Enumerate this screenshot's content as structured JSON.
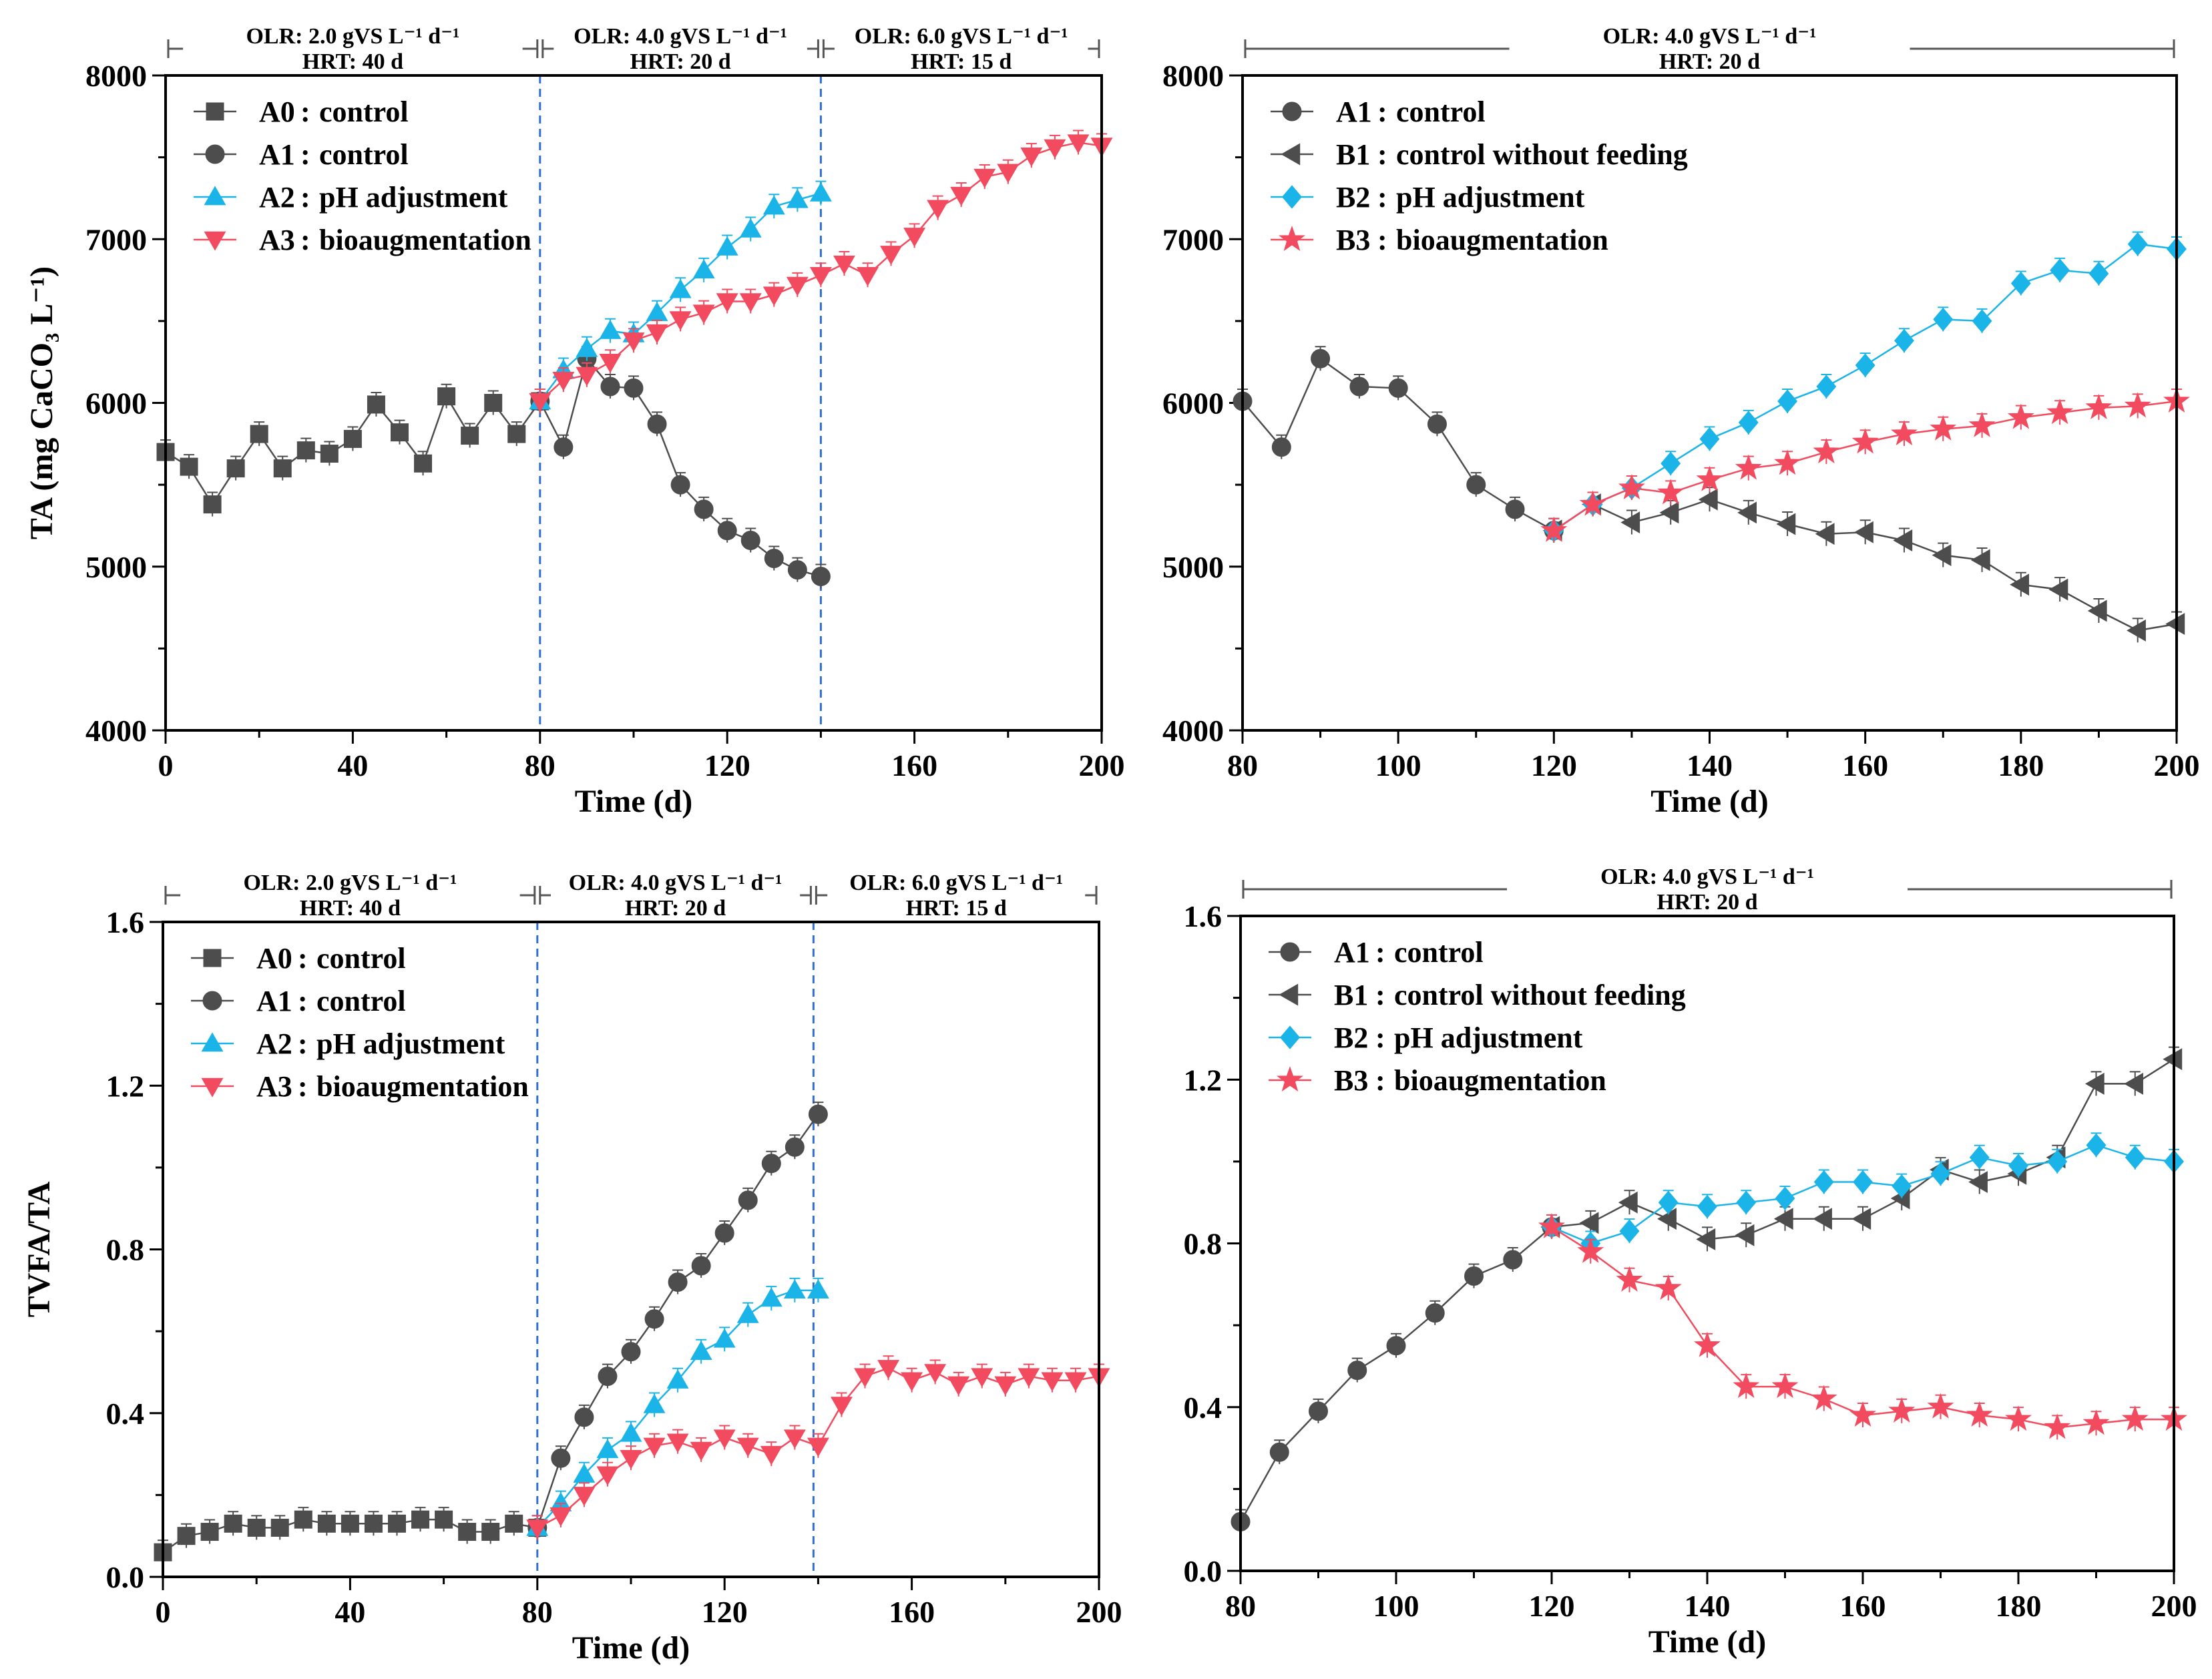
{
  "colors": {
    "gray": "#4d4d4d",
    "cyan": "#1ab4e8",
    "red": "#f24a5e",
    "divider": "#2f6fd6",
    "bracket": "#555555"
  },
  "chart_data": [
    {
      "type": "line",
      "panel": "top-left",
      "xlabel": "Time (d)",
      "ylabel": "TA (mg CaCO₃ L⁻¹)",
      "xlim": [
        0,
        200
      ],
      "ylim": [
        4000,
        8000
      ],
      "xticks": [
        0,
        40,
        80,
        120,
        160,
        200
      ],
      "yticks": [
        4000,
        5000,
        6000,
        7000,
        8000
      ],
      "xtick_labels": [
        "0",
        "40",
        "80",
        "120",
        "160",
        "200"
      ],
      "ytick_labels": [
        "4000",
        "5000",
        "6000",
        "7000",
        "8000"
      ],
      "xminor": 20,
      "yminor": 500,
      "dividers": [
        80,
        140
      ],
      "phases": [
        {
          "from": 0,
          "to": 80,
          "olr": "OLR:  2.0 gVS L⁻¹ d⁻¹",
          "hrt": "HRT: 40 d"
        },
        {
          "from": 80,
          "to": 140,
          "olr": "OLR:  4.0 gVS L⁻¹ d⁻¹",
          "hrt": "HRT: 20 d"
        },
        {
          "from": 140,
          "to": 200,
          "olr": "OLR:  6.0 gVS L⁻¹ d⁻¹",
          "hrt": "HRT: 15 d"
        }
      ],
      "series": [
        {
          "id": "A0",
          "name": "control",
          "marker": "square",
          "color": "#4d4d4d",
          "x": [
            0,
            5,
            10,
            15,
            20,
            25,
            30,
            35,
            40,
            45,
            50,
            55,
            60,
            65,
            70,
            75,
            80
          ],
          "y": [
            5700,
            5610,
            5380,
            5600,
            5810,
            5600,
            5710,
            5690,
            5780,
            5990,
            5820,
            5630,
            6040,
            5800,
            6000,
            5810,
            6010
          ]
        },
        {
          "id": "A1",
          "name": "control",
          "marker": "circle",
          "color": "#4d4d4d",
          "x": [
            80,
            85,
            90,
            95,
            100,
            105,
            110,
            115,
            120,
            125,
            130,
            135,
            140
          ],
          "y": [
            6010,
            5730,
            6270,
            6100,
            6090,
            5870,
            5500,
            5350,
            5220,
            5160,
            5050,
            4980,
            4940
          ]
        },
        {
          "id": "A2",
          "name": "pH adjustment",
          "marker": "triangle-up",
          "color": "#1ab4e8",
          "x": [
            80,
            85,
            90,
            95,
            100,
            105,
            110,
            115,
            120,
            125,
            130,
            135,
            140
          ],
          "y": [
            6010,
            6200,
            6330,
            6440,
            6420,
            6550,
            6690,
            6810,
            6950,
            7060,
            7200,
            7240,
            7280
          ]
        },
        {
          "id": "A3",
          "name": "bioaugmentation",
          "marker": "triangle-down",
          "color": "#f24a5e",
          "x": [
            80,
            85,
            90,
            95,
            100,
            105,
            110,
            115,
            120,
            125,
            130,
            135,
            140,
            145,
            150,
            155,
            160,
            165,
            170,
            175,
            180,
            185,
            190,
            195,
            200
          ],
          "y": [
            6010,
            6140,
            6170,
            6250,
            6380,
            6430,
            6510,
            6550,
            6620,
            6620,
            6660,
            6720,
            6780,
            6850,
            6780,
            6910,
            7020,
            7190,
            7270,
            7380,
            7410,
            7510,
            7560,
            7590,
            7570
          ]
        }
      ]
    },
    {
      "type": "line",
      "panel": "top-right",
      "xlabel": "Time (d)",
      "ylabel": "",
      "xlim": [
        80,
        200
      ],
      "ylim": [
        4000,
        8000
      ],
      "xticks": [
        80,
        100,
        120,
        140,
        160,
        180,
        200
      ],
      "yticks": [
        4000,
        5000,
        6000,
        7000,
        8000
      ],
      "xtick_labels": [
        "80",
        "100",
        "120",
        "140",
        "160",
        "180",
        "200"
      ],
      "ytick_labels": [
        "4000",
        "5000",
        "6000",
        "7000",
        "8000"
      ],
      "xminor": 10,
      "yminor": 500,
      "dividers": [],
      "phases": [
        {
          "from": 80,
          "to": 200,
          "olr": "OLR:  4.0 gVS L⁻¹ d⁻¹",
          "hrt": "HRT: 20 d"
        }
      ],
      "series": [
        {
          "id": "A1",
          "name": "control",
          "marker": "circle",
          "color": "#4d4d4d",
          "x": [
            80,
            85,
            90,
            95,
            100,
            105,
            110,
            115,
            120
          ],
          "y": [
            6010,
            5730,
            6270,
            6100,
            6090,
            5870,
            5500,
            5350,
            5220
          ]
        },
        {
          "id": "B1",
          "name": "control without feeding",
          "marker": "triangle-left",
          "color": "#4d4d4d",
          "x": [
            120,
            125,
            130,
            135,
            140,
            145,
            150,
            155,
            160,
            165,
            170,
            175,
            180,
            185,
            190,
            195,
            200
          ],
          "y": [
            5220,
            5380,
            5270,
            5330,
            5410,
            5330,
            5260,
            5200,
            5210,
            5160,
            5070,
            5040,
            4890,
            4860,
            4730,
            4610,
            4650
          ]
        },
        {
          "id": "B2",
          "name": "pH adjustment",
          "marker": "diamond",
          "color": "#1ab4e8",
          "x": [
            120,
            125,
            130,
            135,
            140,
            145,
            150,
            155,
            160,
            165,
            170,
            175,
            180,
            185,
            190,
            195,
            200
          ],
          "y": [
            5220,
            5380,
            5480,
            5630,
            5780,
            5880,
            6010,
            6100,
            6230,
            6380,
            6510,
            6500,
            6730,
            6810,
            6790,
            6970,
            6940
          ]
        },
        {
          "id": "B3",
          "name": "bioaugmentation",
          "marker": "star",
          "color": "#f24a5e",
          "x": [
            120,
            125,
            130,
            135,
            140,
            145,
            150,
            155,
            160,
            165,
            170,
            175,
            180,
            185,
            190,
            195,
            200
          ],
          "y": [
            5220,
            5380,
            5480,
            5450,
            5530,
            5600,
            5630,
            5700,
            5760,
            5810,
            5840,
            5860,
            5910,
            5940,
            5970,
            5980,
            6010
          ]
        }
      ]
    },
    {
      "type": "line",
      "panel": "bottom-left",
      "xlabel": "Time (d)",
      "ylabel": "TVFA/TA",
      "xlim": [
        0,
        200
      ],
      "ylim": [
        0,
        1.6
      ],
      "xticks": [
        0,
        40,
        80,
        120,
        160,
        200
      ],
      "yticks": [
        0,
        0.4,
        0.8,
        1.2,
        1.6
      ],
      "xtick_labels": [
        "0",
        "40",
        "80",
        "120",
        "160",
        "200"
      ],
      "ytick_labels": [
        "0.0",
        "0.4",
        "0.8",
        "1.2",
        "1.6"
      ],
      "xminor": 20,
      "yminor": 0.2,
      "dividers": [
        80,
        139
      ],
      "phases": [
        {
          "from": 0,
          "to": 80,
          "olr": "OLR:  2.0 gVS L⁻¹ d⁻¹",
          "hrt": "HRT: 40 d"
        },
        {
          "from": 80,
          "to": 139,
          "olr": "OLR:  4.0 gVS L⁻¹ d⁻¹",
          "hrt": "HRT: 20 d"
        },
        {
          "from": 139,
          "to": 200,
          "olr": "OLR:  6.0 gVS L⁻¹ d⁻¹",
          "hrt": "HRT: 15 d"
        }
      ],
      "series": [
        {
          "id": "A0",
          "name": "control",
          "marker": "square",
          "color": "#4d4d4d",
          "x": [
            0,
            5,
            10,
            15,
            20,
            25,
            30,
            35,
            40,
            45,
            50,
            55,
            60,
            65,
            70,
            75,
            80
          ],
          "y": [
            0.06,
            0.1,
            0.11,
            0.13,
            0.12,
            0.12,
            0.14,
            0.13,
            0.13,
            0.13,
            0.13,
            0.14,
            0.14,
            0.11,
            0.11,
            0.13,
            0.12
          ]
        },
        {
          "id": "A1",
          "name": "control",
          "marker": "circle",
          "color": "#4d4d4d",
          "x": [
            80,
            85,
            90,
            95,
            100,
            105,
            110,
            115,
            120,
            125,
            130,
            135,
            140
          ],
          "y": [
            0.12,
            0.29,
            0.39,
            0.49,
            0.55,
            0.63,
            0.72,
            0.76,
            0.84,
            0.92,
            1.01,
            1.05,
            1.13
          ]
        },
        {
          "id": "A2",
          "name": "pH adjustment",
          "marker": "triangle-up",
          "color": "#1ab4e8",
          "x": [
            80,
            85,
            90,
            95,
            100,
            105,
            110,
            115,
            120,
            125,
            130,
            135,
            140
          ],
          "y": [
            0.12,
            0.18,
            0.25,
            0.31,
            0.35,
            0.42,
            0.48,
            0.55,
            0.58,
            0.64,
            0.68,
            0.7,
            0.7
          ]
        },
        {
          "id": "A3",
          "name": "bioaugmentation",
          "marker": "triangle-down",
          "color": "#f24a5e",
          "x": [
            80,
            85,
            90,
            95,
            100,
            105,
            110,
            115,
            120,
            125,
            130,
            135,
            140,
            145,
            150,
            155,
            160,
            165,
            170,
            175,
            180,
            185,
            190,
            195,
            200
          ],
          "y": [
            0.12,
            0.15,
            0.2,
            0.25,
            0.29,
            0.32,
            0.33,
            0.31,
            0.34,
            0.32,
            0.3,
            0.34,
            0.32,
            0.42,
            0.49,
            0.51,
            0.48,
            0.5,
            0.47,
            0.49,
            0.47,
            0.49,
            0.48,
            0.48,
            0.49
          ]
        }
      ]
    },
    {
      "type": "line",
      "panel": "bottom-right",
      "xlabel": "Time (d)",
      "ylabel": "",
      "xlim": [
        80,
        200
      ],
      "ylim": [
        0,
        1.6
      ],
      "xticks": [
        80,
        100,
        120,
        140,
        160,
        180,
        200
      ],
      "yticks": [
        0,
        0.4,
        0.8,
        1.2,
        1.6
      ],
      "xtick_labels": [
        "80",
        "100",
        "120",
        "140",
        "160",
        "180",
        "200"
      ],
      "ytick_labels": [
        "0.0",
        "0.4",
        "0.8",
        "1.2",
        "1.6"
      ],
      "xminor": 10,
      "yminor": 0.2,
      "dividers": [],
      "phases": [
        {
          "from": 80,
          "to": 200,
          "olr": "OLR:  4.0 gVS L⁻¹ d⁻¹",
          "hrt": "HRT: 20 d"
        }
      ],
      "series": [
        {
          "id": "A1",
          "name": "control",
          "marker": "circle",
          "color": "#4d4d4d",
          "x": [
            80,
            85,
            90,
            95,
            100,
            105,
            110,
            115,
            120
          ],
          "y": [
            0.12,
            0.29,
            0.39,
            0.49,
            0.55,
            0.63,
            0.72,
            0.76,
            0.84
          ]
        },
        {
          "id": "B1",
          "name": "control without feeding",
          "marker": "triangle-left",
          "color": "#4d4d4d",
          "x": [
            120,
            125,
            130,
            135,
            140,
            145,
            150,
            155,
            160,
            165,
            170,
            175,
            180,
            185,
            190,
            195,
            200
          ],
          "y": [
            0.84,
            0.85,
            0.9,
            0.86,
            0.81,
            0.82,
            0.86,
            0.86,
            0.86,
            0.91,
            0.98,
            0.95,
            0.97,
            1.01,
            1.19,
            1.19,
            1.25
          ]
        },
        {
          "id": "B2",
          "name": "pH adjustment",
          "marker": "diamond",
          "color": "#1ab4e8",
          "x": [
            120,
            125,
            130,
            135,
            140,
            145,
            150,
            155,
            160,
            165,
            170,
            175,
            180,
            185,
            190,
            195,
            200
          ],
          "y": [
            0.84,
            0.8,
            0.83,
            0.9,
            0.89,
            0.9,
            0.91,
            0.95,
            0.95,
            0.94,
            0.97,
            1.01,
            0.99,
            1.0,
            1.04,
            1.01,
            1.0
          ]
        },
        {
          "id": "B3",
          "name": "bioaugmentation",
          "marker": "star",
          "color": "#f24a5e",
          "x": [
            120,
            125,
            130,
            135,
            140,
            145,
            150,
            155,
            160,
            165,
            170,
            175,
            180,
            185,
            190,
            195,
            200
          ],
          "y": [
            0.84,
            0.78,
            0.71,
            0.69,
            0.55,
            0.45,
            0.45,
            0.42,
            0.38,
            0.39,
            0.4,
            0.38,
            0.37,
            0.35,
            0.36,
            0.37,
            0.37
          ]
        }
      ]
    }
  ]
}
